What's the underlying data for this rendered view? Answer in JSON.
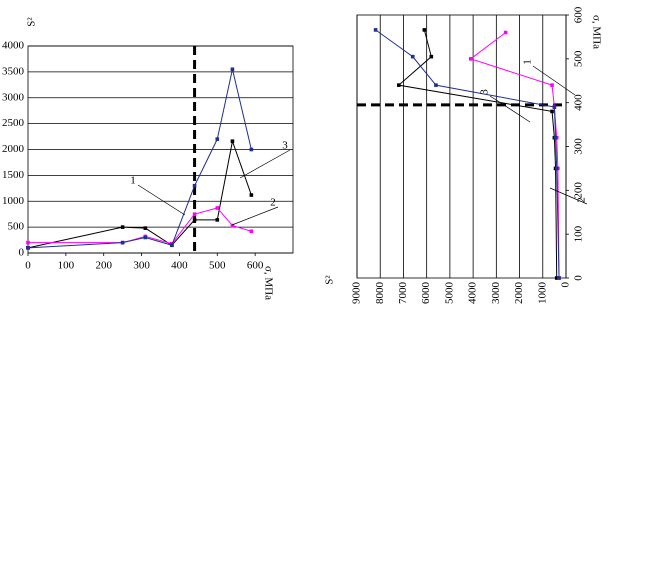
{
  "chart_data": [
    {
      "type": "line",
      "ylabel": "S²",
      "xlabel": "σ, МПа",
      "xlim": [
        0,
        700
      ],
      "xticks": [
        0,
        100,
        200,
        300,
        400,
        500,
        600
      ],
      "ylim": [
        0,
        4000
      ],
      "yticks": [
        0,
        500,
        1000,
        1500,
        2000,
        2500,
        3000,
        3500,
        4000
      ],
      "grid": true,
      "threshold": 440,
      "annotations": [
        "1",
        "2",
        "3"
      ],
      "series": [
        {
          "name": "1",
          "color": "#000000",
          "x": [
            0,
            250,
            310,
            380,
            440,
            500,
            540,
            590
          ],
          "values": [
            100,
            500,
            480,
            150,
            640,
            640,
            2160,
            1120
          ]
        },
        {
          "name": "2",
          "color": "#ff00ff",
          "x": [
            0,
            250,
            310,
            380,
            440,
            500,
            540,
            590
          ],
          "values": [
            200,
            200,
            320,
            180,
            750,
            870,
            530,
            420
          ]
        },
        {
          "name": "3",
          "color": "#1f2f8f",
          "x": [
            0,
            250,
            310,
            380,
            440,
            500,
            540,
            590
          ],
          "values": [
            100,
            200,
            300,
            150,
            1300,
            2200,
            3550,
            2000
          ]
        }
      ]
    },
    {
      "type": "line",
      "ylabel": "S²",
      "xlabel": "σ, МПа",
      "xlim": [
        0,
        600
      ],
      "xticks": [
        0,
        100,
        200,
        300,
        400,
        500,
        600
      ],
      "ylim": [
        0,
        9000
      ],
      "yticks": [
        0,
        1000,
        2000,
        3000,
        4000,
        5000,
        6000,
        7000,
        8000,
        9000
      ],
      "grid": true,
      "threshold": 395,
      "annotations": [
        "1",
        "2",
        "3"
      ],
      "series": [
        {
          "name": "1",
          "color": "#000000",
          "x": [
            0,
            250,
            320,
            380,
            440,
            505,
            566
          ],
          "values": [
            400,
            450,
            500,
            600,
            7200,
            5800,
            6100
          ]
        },
        {
          "name": "2",
          "color": "#ff00ff",
          "x": [
            0,
            250,
            320,
            390,
            440,
            500,
            560
          ],
          "values": [
            300,
            350,
            400,
            500,
            600,
            4100,
            2600
          ]
        },
        {
          "name": "3",
          "color": "#1f2f8f",
          "x": [
            0,
            250,
            320,
            390,
            440,
            505,
            566
          ],
          "values": [
            300,
            400,
            450,
            500,
            5600,
            6600,
            8200
          ]
        }
      ]
    }
  ]
}
